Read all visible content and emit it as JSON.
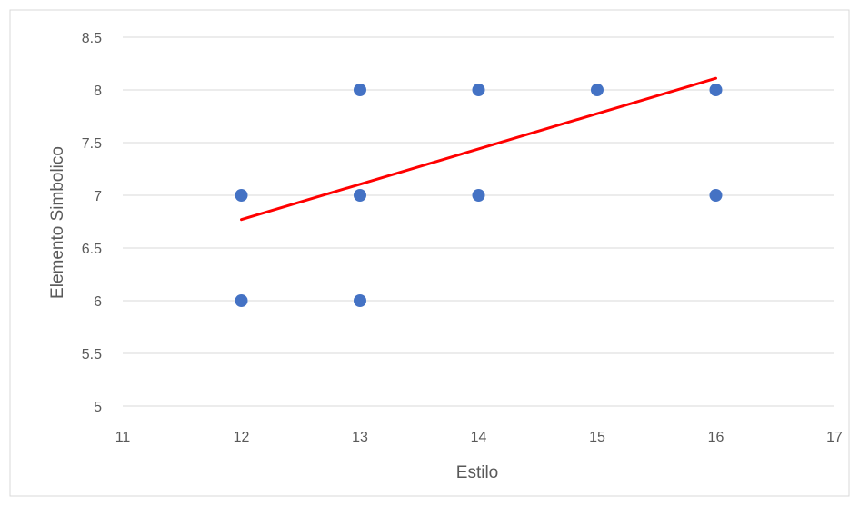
{
  "chart_data": {
    "type": "scatter",
    "xlabel": "Estilo",
    "ylabel": "Elemento Simbolico",
    "xlim": [
      11,
      17
    ],
    "ylim": [
      5,
      8.5
    ],
    "xticks": [
      11,
      12,
      13,
      14,
      15,
      16,
      17
    ],
    "yticks": [
      5,
      5.5,
      6,
      6.5,
      7,
      7.5,
      8,
      8.5
    ],
    "xtick_labels": [
      "11",
      "12",
      "13",
      "14",
      "15",
      "16",
      "17"
    ],
    "ytick_labels": [
      "5",
      "5.5",
      "6",
      "6.5",
      "7",
      "7.5",
      "8",
      "8.5"
    ],
    "grid": "horizontal",
    "series": [
      {
        "color": "#4472C4",
        "points": [
          {
            "x": 12,
            "y": 7
          },
          {
            "x": 12,
            "y": 6
          },
          {
            "x": 13,
            "y": 8
          },
          {
            "x": 13,
            "y": 7
          },
          {
            "x": 13,
            "y": 6
          },
          {
            "x": 14,
            "y": 8
          },
          {
            "x": 14,
            "y": 7
          },
          {
            "x": 15,
            "y": 8
          },
          {
            "x": 16,
            "y": 8
          },
          {
            "x": 16,
            "y": 7
          }
        ]
      }
    ],
    "trendline": {
      "color": "#FF0000",
      "points": [
        {
          "x": 12,
          "y": 6.77
        },
        {
          "x": 16,
          "y": 8.11
        }
      ]
    }
  }
}
